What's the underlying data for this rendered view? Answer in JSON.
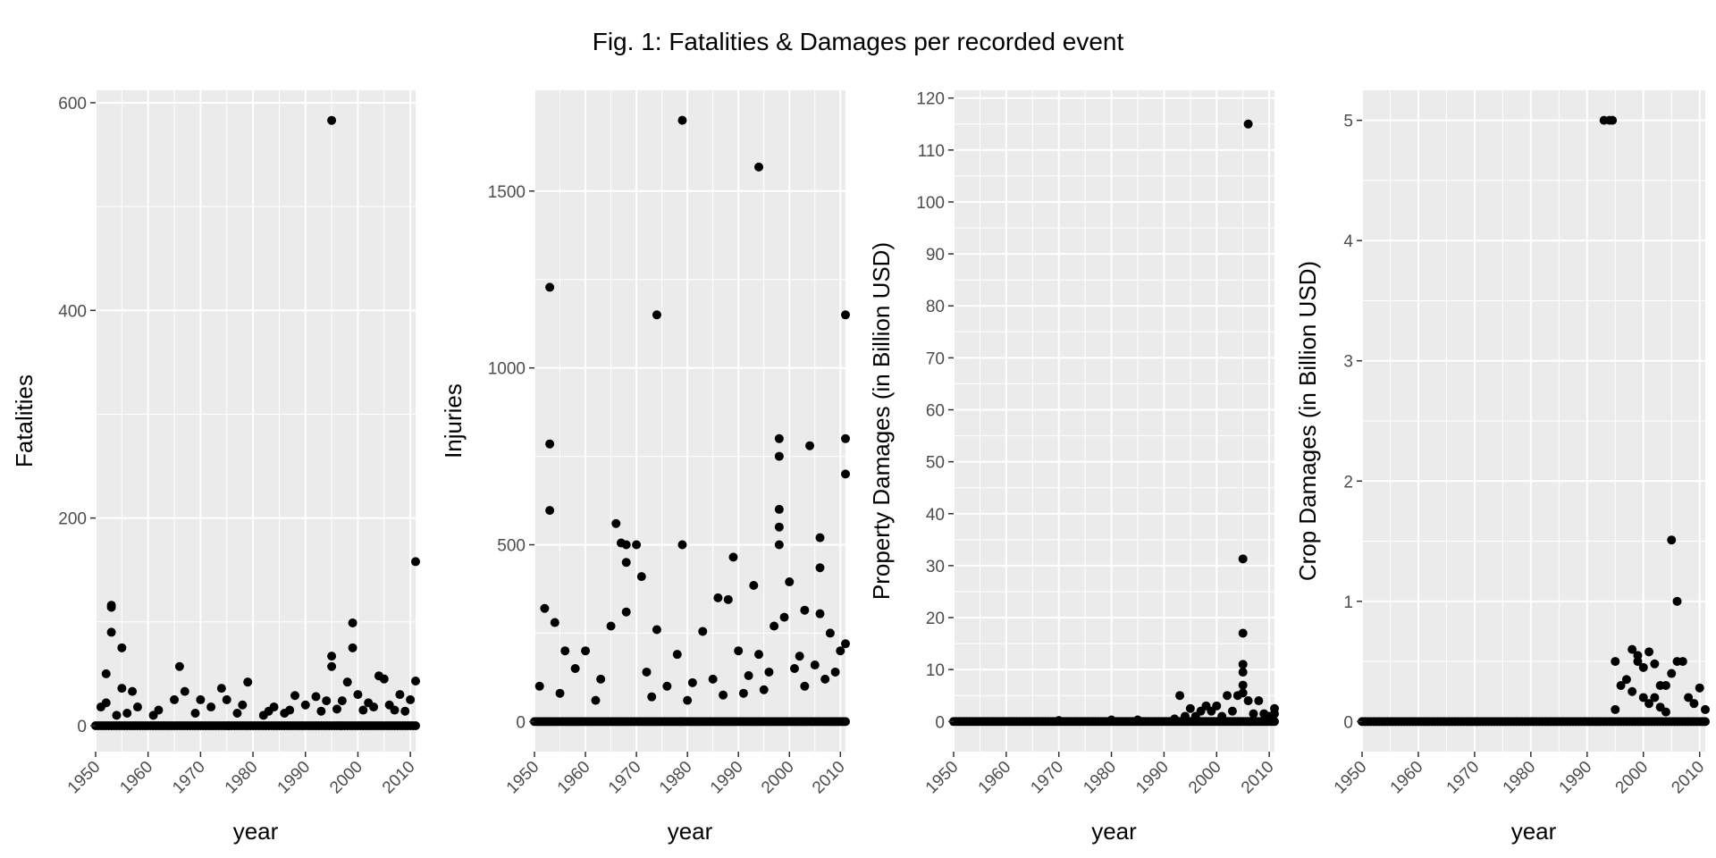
{
  "figure": {
    "title": "Fig. 1: Fatalities & Damages per recorded event"
  },
  "chart_data": [
    {
      "type": "scatter",
      "xlabel": "year",
      "ylabel": "Fatalities",
      "xlim": [
        1950,
        2011
      ],
      "ylim": [
        -25,
        612
      ],
      "x_ticks": [
        1950,
        1960,
        1970,
        1980,
        1990,
        2000,
        2010
      ],
      "y_ticks": [
        0,
        200,
        400,
        600
      ],
      "y_tick_labels": [
        "0",
        "200",
        "400",
        "600"
      ],
      "grid": true,
      "points": [
        [
          1995,
          583
        ],
        [
          2011,
          158
        ],
        [
          1953,
          116
        ],
        [
          1953,
          114
        ],
        [
          1999,
          99
        ],
        [
          1953,
          90
        ],
        [
          1955,
          75
        ],
        [
          1999,
          75
        ],
        [
          1995,
          67
        ],
        [
          1995,
          57
        ],
        [
          1966,
          57
        ],
        [
          2004,
          48
        ],
        [
          1952,
          50
        ],
        [
          2005,
          45
        ],
        [
          2011,
          43
        ],
        [
          1979,
          42
        ],
        [
          1998,
          42
        ],
        [
          1955,
          36
        ],
        [
          1974,
          36
        ],
        [
          1957,
          33
        ],
        [
          1967,
          33
        ],
        [
          1988,
          29
        ],
        [
          1992,
          28
        ],
        [
          2000,
          30
        ],
        [
          2008,
          30
        ],
        [
          1952,
          22
        ],
        [
          1965,
          25
        ],
        [
          1970,
          25
        ],
        [
          1975,
          25
        ],
        [
          1978,
          20
        ],
        [
          1984,
          18
        ],
        [
          1990,
          20
        ],
        [
          1994,
          24
        ],
        [
          1997,
          24
        ],
        [
          2002,
          22
        ],
        [
          2010,
          25
        ],
        [
          1951,
          18
        ],
        [
          1958,
          18
        ],
        [
          1962,
          15
        ],
        [
          1972,
          18
        ],
        [
          1983,
          14
        ],
        [
          1987,
          15
        ],
        [
          2003,
          18
        ],
        [
          2006,
          20
        ],
        [
          1956,
          12
        ],
        [
          1961,
          10
        ],
        [
          1969,
          12
        ],
        [
          1977,
          12
        ],
        [
          1982,
          10
        ],
        [
          1986,
          12
        ],
        [
          1993,
          14
        ],
        [
          1996,
          16
        ],
        [
          2001,
          15
        ],
        [
          2007,
          15
        ],
        [
          2009,
          14
        ],
        [
          1954,
          10
        ]
      ]
    },
    {
      "type": "scatter",
      "xlabel": "year",
      "ylabel": "Injuries",
      "xlim": [
        1950,
        2011
      ],
      "ylim": [
        -85,
        1785
      ],
      "x_ticks": [
        1950,
        1960,
        1970,
        1980,
        1990,
        2000,
        2010
      ],
      "y_ticks": [
        0,
        500,
        1000,
        1500
      ],
      "y_tick_labels": [
        "0",
        "500",
        "1000",
        "1500"
      ],
      "grid": true,
      "points": [
        [
          1979,
          1700
        ],
        [
          1994,
          1568
        ],
        [
          1953,
          1228
        ],
        [
          1974,
          1150
        ],
        [
          2011,
          1150
        ],
        [
          1998,
          800
        ],
        [
          2011,
          800
        ],
        [
          1953,
          785
        ],
        [
          2004,
          780
        ],
        [
          1998,
          750
        ],
        [
          2011,
          700
        ],
        [
          1998,
          600
        ],
        [
          1953,
          597
        ],
        [
          1966,
          560
        ],
        [
          1998,
          550
        ],
        [
          2006,
          520
        ],
        [
          1967,
          505
        ],
        [
          1970,
          500
        ],
        [
          1979,
          500
        ],
        [
          1968,
          500
        ],
        [
          1998,
          500
        ],
        [
          1989,
          465
        ],
        [
          1968,
          450
        ],
        [
          2006,
          435
        ],
        [
          1971,
          410
        ],
        [
          2000,
          395
        ],
        [
          1993,
          385
        ],
        [
          1952,
          320
        ],
        [
          2003,
          315
        ],
        [
          1968,
          310
        ],
        [
          1986,
          350
        ],
        [
          1988,
          345
        ],
        [
          2006,
          305
        ],
        [
          1954,
          280
        ],
        [
          1965,
          270
        ],
        [
          1974,
          260
        ],
        [
          1983,
          255
        ],
        [
          1997,
          270
        ],
        [
          1999,
          295
        ],
        [
          2008,
          250
        ],
        [
          2011,
          220
        ],
        [
          1960,
          200
        ],
        [
          1956,
          200
        ],
        [
          1978,
          190
        ],
        [
          1990,
          200
        ],
        [
          1994,
          190
        ],
        [
          2002,
          185
        ],
        [
          2010,
          200
        ],
        [
          1951,
          100
        ],
        [
          1958,
          150
        ],
        [
          1963,
          120
        ],
        [
          1972,
          140
        ],
        [
          1976,
          100
        ],
        [
          1981,
          110
        ],
        [
          1985,
          120
        ],
        [
          1992,
          130
        ],
        [
          1996,
          140
        ],
        [
          2001,
          150
        ],
        [
          2005,
          160
        ],
        [
          2009,
          140
        ],
        [
          1955,
          80
        ],
        [
          1962,
          60
        ],
        [
          1973,
          70
        ],
        [
          1980,
          60
        ],
        [
          1987,
          75
        ],
        [
          1991,
          80
        ],
        [
          1995,
          90
        ],
        [
          2003,
          100
        ],
        [
          2007,
          120
        ]
      ]
    },
    {
      "type": "scatter",
      "xlabel": "year",
      "ylabel": "Property Damages (in Billion USD)",
      "xlim": [
        1950,
        2011
      ],
      "ylim": [
        -5.8,
        121.5
      ],
      "x_ticks": [
        1950,
        1960,
        1970,
        1980,
        1990,
        2000,
        2010
      ],
      "y_ticks": [
        0,
        10,
        20,
        30,
        40,
        50,
        60,
        70,
        80,
        90,
        100,
        110,
        120
      ],
      "y_tick_labels": [
        "0",
        "10",
        "20",
        "30",
        "40",
        "50",
        "60",
        "70",
        "80",
        "90",
        "100",
        "110",
        "120"
      ],
      "grid": true,
      "points": [
        [
          2006,
          115
        ],
        [
          2005,
          31.3
        ],
        [
          2005,
          17
        ],
        [
          2005,
          11
        ],
        [
          2005,
          9.5
        ],
        [
          2005,
          7
        ],
        [
          2005,
          5.5
        ],
        [
          1993,
          5
        ],
        [
          2002,
          5
        ],
        [
          2004,
          5
        ],
        [
          2006,
          4
        ],
        [
          2008,
          4
        ],
        [
          2011,
          2.5
        ],
        [
          2011,
          1.5
        ],
        [
          1998,
          3
        ],
        [
          2000,
          3
        ],
        [
          1997,
          2
        ],
        [
          1995,
          2.5
        ],
        [
          1999,
          2
        ],
        [
          2003,
          2
        ],
        [
          2007,
          1.5
        ],
        [
          2009,
          1.5
        ],
        [
          2010,
          1
        ],
        [
          1994,
          1
        ],
        [
          1996,
          1
        ],
        [
          2001,
          1
        ],
        [
          1992,
          0.5
        ],
        [
          1980,
          0.3
        ],
        [
          1985,
          0.3
        ],
        [
          1970,
          0.2
        ]
      ]
    },
    {
      "type": "scatter",
      "xlabel": "year",
      "ylabel": "Crop Damages (in Billion USD)",
      "xlim": [
        1950,
        2011
      ],
      "ylim": [
        -0.25,
        5.25
      ],
      "x_ticks": [
        1950,
        1960,
        1970,
        1980,
        1990,
        2000,
        2010
      ],
      "y_ticks": [
        0,
        1,
        2,
        3,
        4,
        5
      ],
      "y_tick_labels": [
        "0",
        "1",
        "2",
        "3",
        "4",
        "5"
      ],
      "grid": true,
      "points": [
        [
          1993,
          5
        ],
        [
          1994,
          5
        ],
        [
          1994.5,
          5
        ],
        [
          2005,
          1.51
        ],
        [
          2006,
          1
        ],
        [
          1998,
          0.6
        ],
        [
          1999,
          0.55
        ],
        [
          2001,
          0.58
        ],
        [
          1995,
          0.5
        ],
        [
          1999,
          0.5
        ],
        [
          2000,
          0.45
        ],
        [
          2002,
          0.48
        ],
        [
          2006,
          0.5
        ],
        [
          2007,
          0.5
        ],
        [
          2003,
          0.3
        ],
        [
          2004,
          0.3
        ],
        [
          2005,
          0.4
        ],
        [
          2008,
          0.2
        ],
        [
          2009,
          0.15
        ],
        [
          2010,
          0.28
        ],
        [
          1996,
          0.3
        ],
        [
          1997,
          0.35
        ],
        [
          1998,
          0.25
        ],
        [
          2011,
          0.1
        ],
        [
          1995,
          0.1
        ],
        [
          2000,
          0.2
        ],
        [
          2001,
          0.15
        ],
        [
          2002,
          0.2
        ],
        [
          2003,
          0.12
        ],
        [
          2004,
          0.08
        ]
      ]
    }
  ]
}
